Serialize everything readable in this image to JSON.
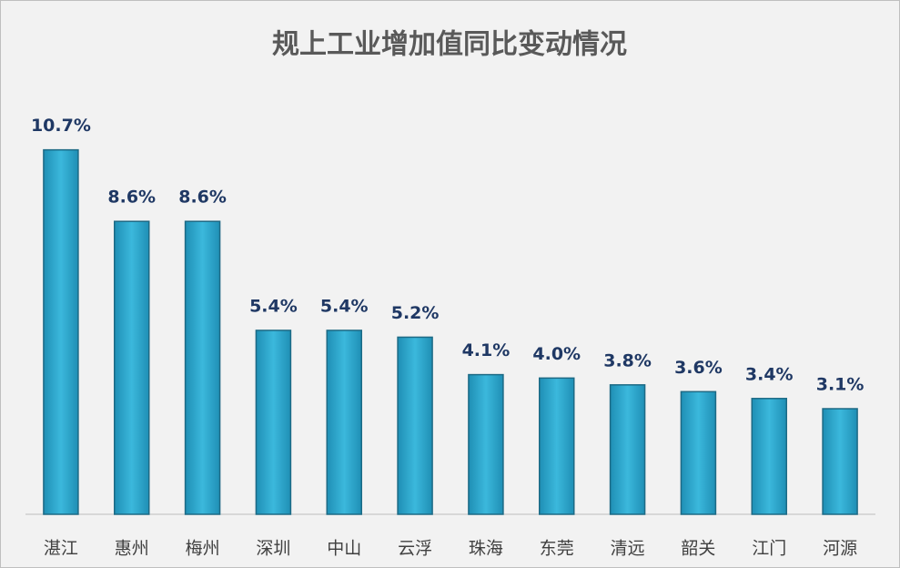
{
  "chart_data": {
    "type": "bar",
    "title": "规上工业增加值同比变动情况",
    "categories": [
      "湛江",
      "惠州",
      "梅州",
      "深圳",
      "中山",
      "云浮",
      "珠海",
      "东莞",
      "清远",
      "韶关",
      "江门",
      "河源"
    ],
    "values": [
      10.7,
      8.6,
      8.6,
      5.4,
      5.4,
      5.2,
      4.1,
      4.0,
      3.8,
      3.6,
      3.4,
      3.1
    ],
    "value_labels": [
      "10.7%",
      "8.6%",
      "8.6%",
      "5.4%",
      "5.4%",
      "5.2%",
      "4.1%",
      "4.0%",
      "3.8%",
      "3.6%",
      "3.4%",
      "3.1%"
    ],
    "color": "#3bb8dc",
    "ylim": [
      0,
      12
    ]
  }
}
